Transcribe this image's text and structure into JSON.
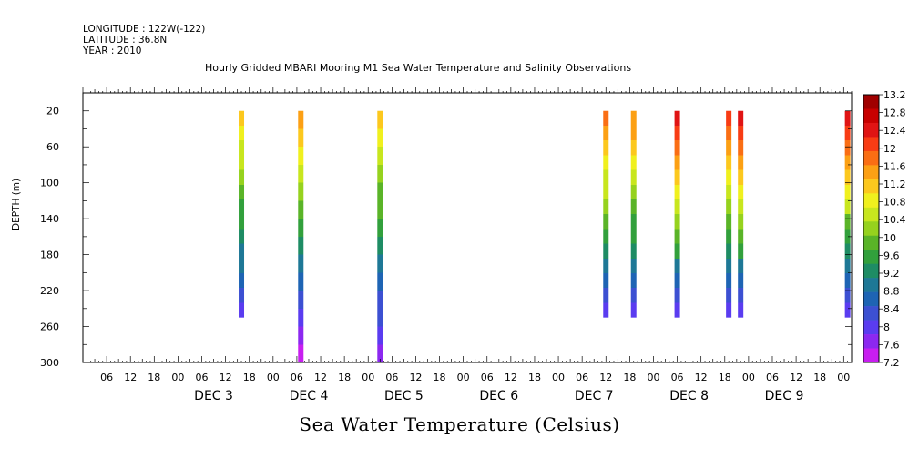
{
  "header": {
    "longitude": "LONGITUDE : 122W(-122)",
    "latitude": "LATITUDE : 36.8N",
    "year": "YEAR : 2010"
  },
  "chart_data": {
    "type": "heatmap",
    "title": "Hourly Gridded MBARI Mooring M1 Sea Water Temperature and Salinity Observations",
    "xlabel": "",
    "ylabel": "DEPTH (m)",
    "bottom_title": "Sea Water Temperature (Celsius)",
    "x_units": "hours since Dec 2 00:00",
    "xlim": [
      0,
      194
    ],
    "ylim": [
      300,
      0
    ],
    "y_ticks": [
      20,
      60,
      100,
      140,
      180,
      220,
      260,
      300
    ],
    "hour_tick_labels": [
      "06",
      "12",
      "18",
      "00"
    ],
    "day_labels": [
      "DEC  3",
      "DEC  4",
      "DEC  5",
      "DEC  6",
      "DEC  7",
      "DEC  8",
      "DEC  9"
    ],
    "colorbar": {
      "min": 7.2,
      "max": 13.2,
      "step": 0.4,
      "labels": [
        "13.2",
        "12.8",
        "12.4",
        "12",
        "11.6",
        "11.2",
        "10.8",
        "10.4",
        "10",
        "9.6",
        "9.2",
        "8.8",
        "8.4",
        "8",
        "7.6",
        "7.2"
      ],
      "colors": [
        "#a00000",
        "#c80000",
        "#e01414",
        "#f83c14",
        "#fa6e14",
        "#fca014",
        "#fcc81e",
        "#f0f01e",
        "#c8e61e",
        "#96d21e",
        "#5ab428",
        "#32a03c",
        "#1e8c64",
        "#1e7896",
        "#1e64b4",
        "#3c50d2",
        "#5a3cf0",
        "#8c28f0",
        "#c81ef0"
      ]
    },
    "series": [
      {
        "hour": 40,
        "depths": [
          20,
          250
        ],
        "top_temp": 11.1,
        "bottom_temp": 8.1
      },
      {
        "hour": 55,
        "depths": [
          20,
          300
        ],
        "top_temp": 11.4,
        "bottom_temp": 7.5
      },
      {
        "hour": 75,
        "depths": [
          20,
          300
        ],
        "top_temp": 11.0,
        "bottom_temp": 7.7
      },
      {
        "hour": 132,
        "depths": [
          20,
          250
        ],
        "top_temp": 11.8,
        "bottom_temp": 8.1
      },
      {
        "hour": 139,
        "depths": [
          20,
          250
        ],
        "top_temp": 11.6,
        "bottom_temp": 8.1
      },
      {
        "hour": 150,
        "depths": [
          20,
          250
        ],
        "top_temp": 12.4,
        "bottom_temp": 8.1
      },
      {
        "hour": 163,
        "depths": [
          20,
          250
        ],
        "top_temp": 12.0,
        "bottom_temp": 8.1
      },
      {
        "hour": 166,
        "depths": [
          20,
          250
        ],
        "top_temp": 12.4,
        "bottom_temp": 8.1
      },
      {
        "hour": 193,
        "depths": [
          20,
          250
        ],
        "top_temp": 12.3,
        "bottom_temp": 8.1
      }
    ]
  }
}
